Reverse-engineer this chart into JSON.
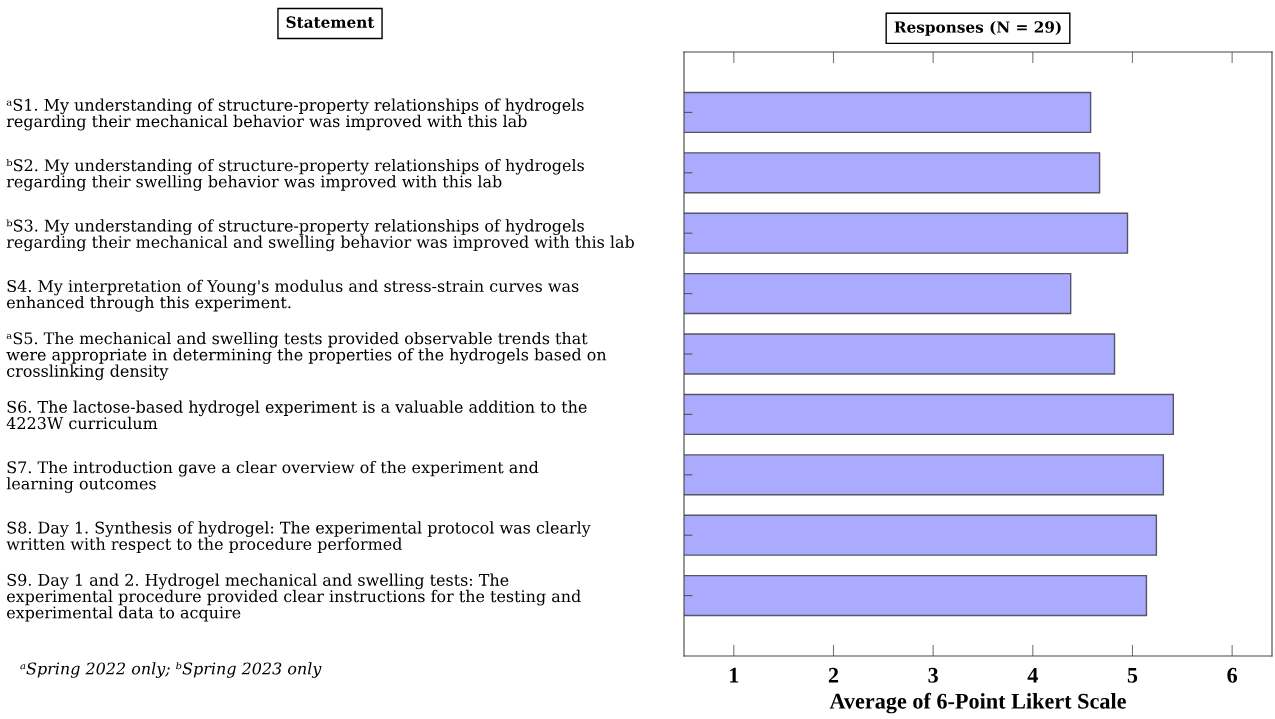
{
  "chart_data": {
    "type": "bar",
    "orientation": "horizontal",
    "title": "Responses (N = 29)",
    "ylabel": "Statement",
    "xlabel": "Average of 6-Point Likert Scale",
    "categories": [
      "ᵃS1. My understanding of structure-property relationships of hydrogels\nregarding their mechanical behavior was improved with this lab",
      "ᵇS2. My understanding of structure-property relationships of hydrogels\nregarding their swelling behavior was improved with this lab",
      "ᵇS3. My understanding of structure-property relationships of hydrogels\nregarding their mechanical and swelling behavior was improved with this lab",
      "S4. My interpretation of Young's modulus and stress-strain curves was\nenhanced through this experiment.",
      "ᵃS5. The mechanical and swelling tests provided observable trends that\nwere appropriate in determining the properties of the hydrogels based on\ncrosslinking density",
      "S6. The lactose-based hydrogel experiment is a valuable addition to the\n4223W curriculum",
      "S7. The introduction gave a clear overview of the experiment and\nlearning outcomes",
      "S8. Day 1. Synthesis of hydrogel: The experimental protocol was clearly\nwritten with respect to the procedure performed",
      "S9. Day 1 and 2. Hydrogel mechanical and swelling tests: The\nexperimental procedure provided clear instructions for the testing and\nexperimental data to acquire"
    ],
    "values": [
      4.58,
      4.67,
      4.95,
      4.38,
      4.82,
      5.41,
      5.31,
      5.24,
      5.14
    ],
    "color": "#aaaaff",
    "xlim": [
      0.5,
      6.4
    ],
    "xticks": [
      1,
      2,
      3,
      4,
      5,
      6
    ],
    "grid": false,
    "annotations": [
      "ᵃSpring 2022 only; ᵇSpring 2023 only"
    ]
  }
}
